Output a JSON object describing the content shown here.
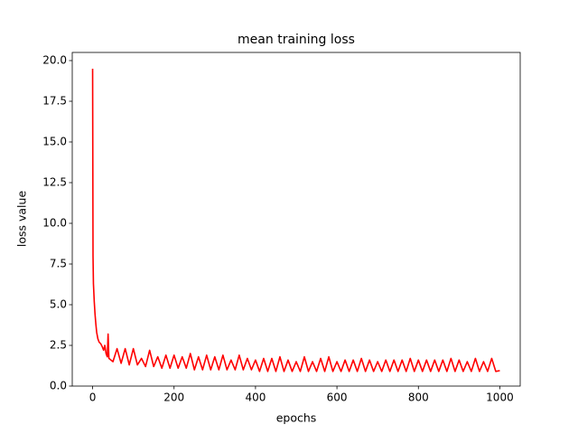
{
  "chart_data": {
    "type": "line",
    "title": "mean training loss",
    "x_label": "epochs",
    "y_label": "loss value",
    "xlim": [
      -50,
      1050
    ],
    "ylim": [
      0,
      20.5
    ],
    "xticks": [
      0,
      200,
      400,
      600,
      800,
      1000
    ],
    "yticks": [
      {
        "value": 0,
        "label": "0.0"
      },
      2.5,
      {
        "value": 5,
        "label": "5.0"
      },
      7.5,
      {
        "value": 10,
        "label": "10.0"
      },
      12.5,
      {
        "value": 15,
        "label": "15.0"
      },
      17.5,
      {
        "value": 20,
        "label": "20.0"
      }
    ],
    "x": [
      0,
      1,
      2,
      4,
      6,
      8,
      10,
      13,
      16,
      20,
      24,
      27,
      30,
      33,
      36,
      38,
      40,
      50,
      60,
      70,
      80,
      90,
      100,
      110,
      120,
      130,
      140,
      150,
      160,
      170,
      180,
      190,
      200,
      210,
      220,
      230,
      240,
      250,
      260,
      270,
      280,
      290,
      300,
      310,
      320,
      330,
      340,
      350,
      360,
      370,
      380,
      390,
      400,
      410,
      420,
      430,
      440,
      450,
      460,
      470,
      480,
      490,
      500,
      510,
      520,
      530,
      540,
      550,
      560,
      570,
      580,
      590,
      600,
      610,
      620,
      630,
      640,
      650,
      660,
      670,
      680,
      690,
      700,
      710,
      720,
      730,
      740,
      750,
      760,
      770,
      780,
      790,
      800,
      810,
      820,
      830,
      840,
      850,
      860,
      870,
      880,
      890,
      900,
      910,
      920,
      930,
      940,
      950,
      960,
      970,
      980,
      990,
      1000
    ],
    "series": [
      {
        "name": "mean training loss",
        "color": "#ff0000",
        "values": [
          19.5,
          8.0,
          6.3,
          5.2,
          4.4,
          3.8,
          3.3,
          2.9,
          2.7,
          2.6,
          2.4,
          2.2,
          2.5,
          2.0,
          1.8,
          3.2,
          1.7,
          1.5,
          2.3,
          1.4,
          2.3,
          1.3,
          2.3,
          1.3,
          1.7,
          1.2,
          2.2,
          1.2,
          1.8,
          1.1,
          1.9,
          1.1,
          1.9,
          1.1,
          1.8,
          1.1,
          2.0,
          1.0,
          1.8,
          1.0,
          1.9,
          1.0,
          1.8,
          1.0,
          1.9,
          1.0,
          1.6,
          1.0,
          1.9,
          1.0,
          1.7,
          1.0,
          1.6,
          0.9,
          1.7,
          0.9,
          1.7,
          0.9,
          1.8,
          0.9,
          1.6,
          0.9,
          1.5,
          0.9,
          1.8,
          0.9,
          1.5,
          0.9,
          1.7,
          0.9,
          1.8,
          0.9,
          1.5,
          0.9,
          1.6,
          0.9,
          1.6,
          0.9,
          1.7,
          0.9,
          1.6,
          0.9,
          1.5,
          0.9,
          1.6,
          0.9,
          1.6,
          0.9,
          1.6,
          0.9,
          1.7,
          0.9,
          1.6,
          0.9,
          1.6,
          0.9,
          1.6,
          0.9,
          1.6,
          0.9,
          1.7,
          0.9,
          1.6,
          0.9,
          1.5,
          0.9,
          1.7,
          0.9,
          1.5,
          0.9,
          1.7,
          0.9,
          0.95
        ]
      }
    ]
  }
}
